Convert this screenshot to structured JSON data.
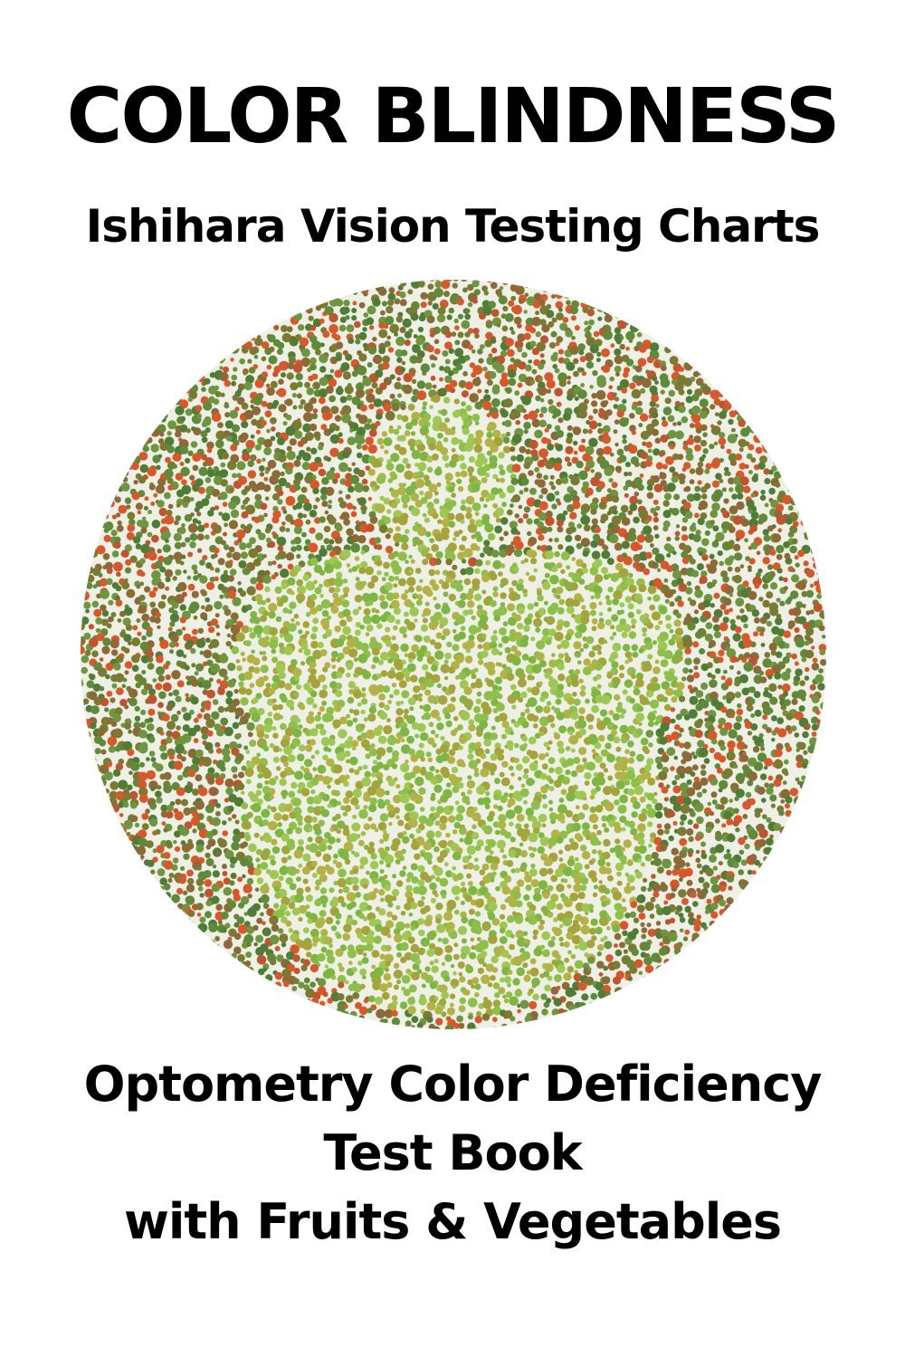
{
  "cover": {
    "title": "COLOR BLINDNESS",
    "subtitle": "Ishihara Vision Testing Charts",
    "bottom_lines": [
      "Optometry Color Deficiency",
      "Test Book",
      "with Fruits & Vegetables"
    ]
  },
  "plate": {
    "figure": "apple",
    "background_colors": [
      "#5f8a3a",
      "#7a7a32",
      "#4f7d36",
      "#d9582b",
      "#c0542e",
      "#8c6a38",
      "#6e9640"
    ],
    "figure_colors": [
      "#8dbf4a",
      "#a4a33c",
      "#9ec853",
      "#b3b246",
      "#7db642"
    ],
    "border_color": "#9e9a8a"
  }
}
